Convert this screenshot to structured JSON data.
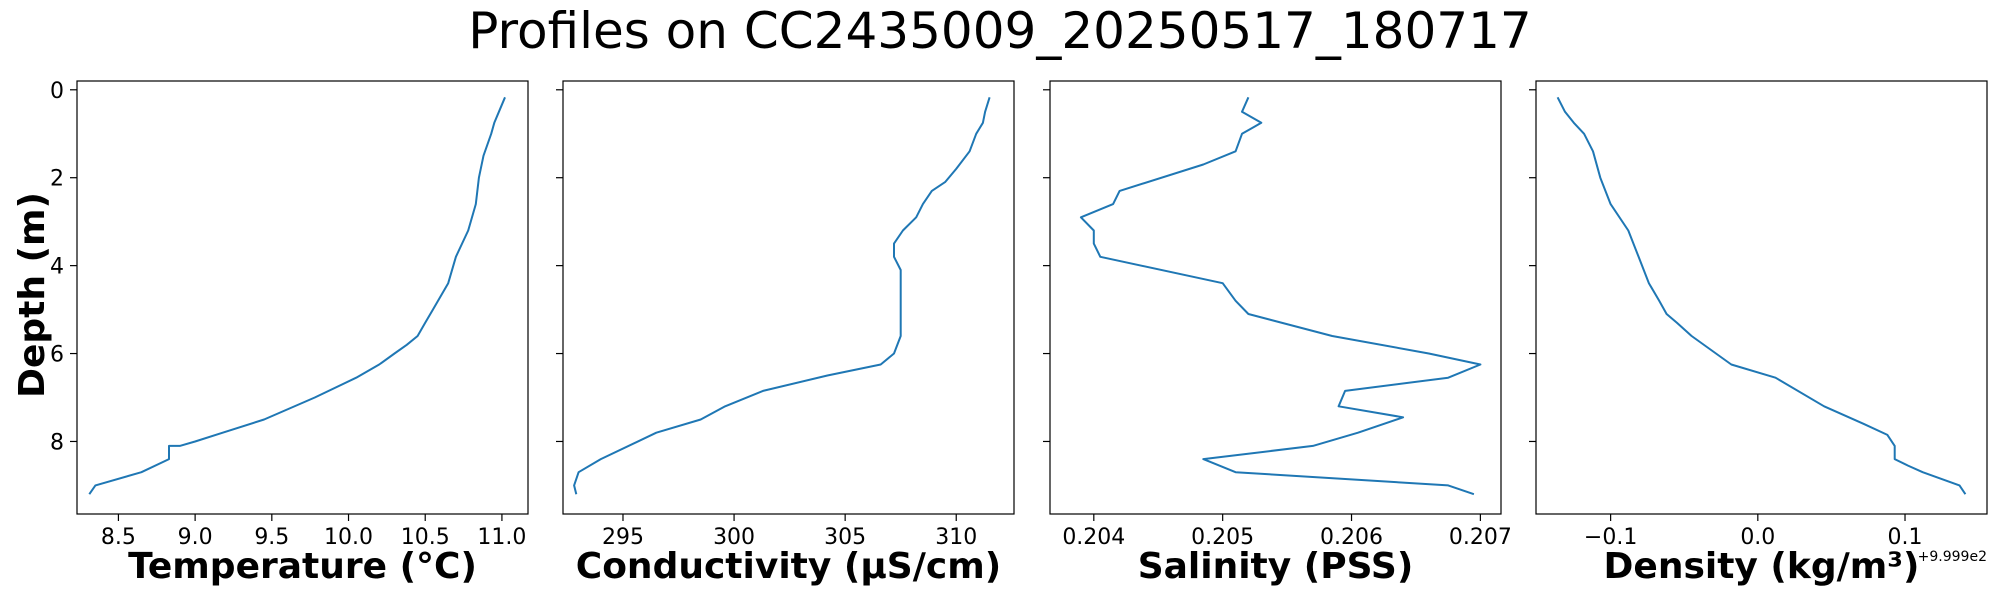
{
  "figure": {
    "title": "Profiles on CC2435009_20250517_180717",
    "shared_ylabel": "Depth (m)"
  },
  "chart_data": [
    {
      "type": "line",
      "xlabel": "Temperature (°C)",
      "ylabel": "Depth (m)",
      "xlim": [
        8.23,
        11.17
      ],
      "ylim": [
        9.65,
        -0.2
      ],
      "y_inverted": true,
      "grid": false,
      "color": "#1f77b4",
      "xticks": [
        8.5,
        9.0,
        9.5,
        10.0,
        10.5,
        11.0
      ],
      "xtick_labels": [
        "8.5",
        "9.0",
        "9.5",
        "10.0",
        "10.5",
        "11.0"
      ],
      "yticks": [
        0,
        2,
        4,
        6,
        8
      ],
      "ytick_labels": [
        "0",
        "2",
        "4",
        "6",
        "8"
      ],
      "y_ticklabels_shown": true,
      "offset_label": "",
      "x": [
        11.02,
        10.98,
        10.95,
        10.93,
        10.88,
        10.85,
        10.83,
        10.78,
        10.7,
        10.65,
        10.55,
        10.5,
        10.45,
        10.38,
        10.3,
        10.2,
        10.05,
        9.78,
        9.45,
        9.18,
        9.0,
        8.9,
        8.83,
        8.83,
        8.65,
        8.35,
        8.31
      ],
      "y": [
        0.17,
        0.5,
        0.75,
        1.0,
        1.5,
        2.0,
        2.6,
        3.2,
        3.8,
        4.4,
        5.0,
        5.3,
        5.6,
        5.8,
        6.0,
        6.25,
        6.55,
        7.0,
        7.5,
        7.8,
        8.0,
        8.1,
        8.1,
        8.4,
        8.7,
        9.0,
        9.2
      ]
    },
    {
      "type": "line",
      "xlabel": "Conductivity (µS/cm)",
      "ylabel": "",
      "xlim": [
        292.3,
        312.6
      ],
      "ylim": [
        9.65,
        -0.2
      ],
      "y_inverted": true,
      "grid": false,
      "color": "#1f77b4",
      "xticks": [
        295,
        300,
        305,
        310
      ],
      "xtick_labels": [
        "295",
        "300",
        "305",
        "310"
      ],
      "yticks": [
        0,
        2,
        4,
        6,
        8
      ],
      "ytick_labels": [
        "0",
        "2",
        "4",
        "6",
        "8"
      ],
      "y_ticklabels_shown": false,
      "offset_label": "",
      "x": [
        311.5,
        311.3,
        311.2,
        310.9,
        310.6,
        310.0,
        309.5,
        308.9,
        308.5,
        308.2,
        307.6,
        307.2,
        307.2,
        307.5,
        307.5,
        307.5,
        307.5,
        307.2,
        306.6,
        304.2,
        301.3,
        299.6,
        298.5,
        296.5,
        294.0,
        293.0,
        292.8,
        292.9
      ],
      "y": [
        0.17,
        0.5,
        0.75,
        1.0,
        1.4,
        1.8,
        2.1,
        2.3,
        2.6,
        2.9,
        3.2,
        3.5,
        3.8,
        4.1,
        4.4,
        5.0,
        5.6,
        6.0,
        6.25,
        6.5,
        6.85,
        7.2,
        7.5,
        7.8,
        8.4,
        8.7,
        9.0,
        9.2
      ]
    },
    {
      "type": "line",
      "xlabel": "Salinity (PSS)",
      "ylabel": "",
      "xlim": [
        0.20366,
        0.20716
      ],
      "ylim": [
        9.65,
        -0.2
      ],
      "y_inverted": true,
      "grid": false,
      "color": "#1f77b4",
      "xticks": [
        0.204,
        0.205,
        0.206,
        0.207
      ],
      "xtick_labels": [
        "0.204",
        "0.205",
        "0.206",
        "0.207"
      ],
      "yticks": [
        0,
        2,
        4,
        6,
        8
      ],
      "ytick_labels": [
        "0",
        "2",
        "4",
        "6",
        "8"
      ],
      "y_ticklabels_shown": false,
      "offset_label": "",
      "x": [
        0.2052,
        0.20515,
        0.2053,
        0.20515,
        0.2051,
        0.20485,
        0.2042,
        0.20415,
        0.2039,
        0.204,
        0.204,
        0.20405,
        0.205,
        0.2051,
        0.2052,
        0.20585,
        0.2066,
        0.207,
        0.20675,
        0.20595,
        0.2059,
        0.2064,
        0.20605,
        0.2057,
        0.20485,
        0.2051,
        0.20675,
        0.20695
      ],
      "y": [
        0.17,
        0.5,
        0.75,
        1.0,
        1.4,
        1.7,
        2.3,
        2.6,
        2.9,
        3.2,
        3.5,
        3.8,
        4.4,
        4.8,
        5.1,
        5.6,
        6.0,
        6.25,
        6.55,
        6.85,
        7.2,
        7.45,
        7.8,
        8.1,
        8.4,
        8.7,
        9.0,
        9.2
      ]
    },
    {
      "type": "line",
      "xlabel": "Density (kg/m³)",
      "ylabel": "",
      "xlim": [
        -0.1507,
        0.1557
      ],
      "ylim": [
        9.65,
        -0.2
      ],
      "y_inverted": true,
      "grid": false,
      "color": "#1f77b4",
      "xticks": [
        -0.1,
        0.0,
        0.1
      ],
      "xtick_labels": [
        "−0.1",
        "0.0",
        "0.1"
      ],
      "yticks": [
        0,
        2,
        4,
        6,
        8
      ],
      "ytick_labels": [
        "0",
        "2",
        "4",
        "6",
        "8"
      ],
      "y_ticklabels_shown": false,
      "offset_label": "+9.999e2",
      "x": [
        -0.136,
        -0.131,
        -0.125,
        -0.118,
        -0.112,
        -0.107,
        -0.1,
        -0.088,
        -0.081,
        -0.074,
        -0.067,
        -0.062,
        -0.055,
        -0.045,
        -0.018,
        0.012,
        0.045,
        0.072,
        0.088,
        0.093,
        0.093,
        0.102,
        0.112,
        0.137,
        0.141
      ],
      "y": [
        0.17,
        0.5,
        0.75,
        1.0,
        1.4,
        2.0,
        2.6,
        3.2,
        3.8,
        4.4,
        4.8,
        5.1,
        5.3,
        5.6,
        6.25,
        6.55,
        7.2,
        7.6,
        7.85,
        8.1,
        8.4,
        8.55,
        8.7,
        9.0,
        9.2
      ]
    }
  ]
}
